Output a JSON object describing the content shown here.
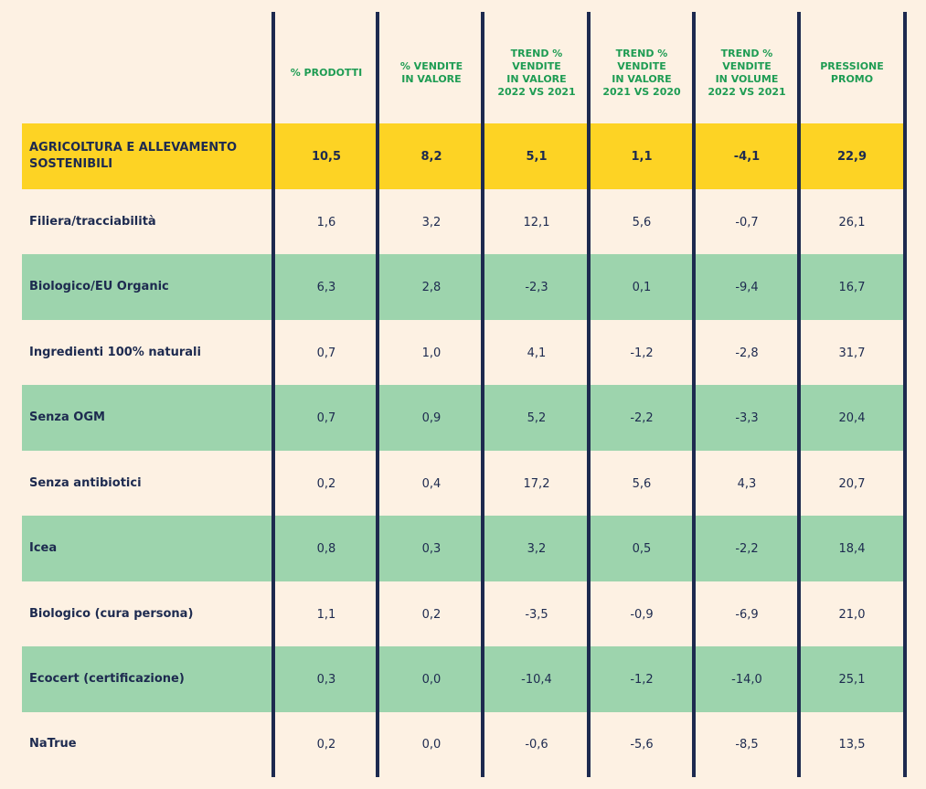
{
  "table": {
    "columns": [
      "% PRODOTTI",
      "% VENDITE\nIN VALORE",
      "TREND %\nVENDITE\nIN VALORE\n2022 VS 2021",
      "TREND %\nVENDITE\nIN VALORE\n2021 VS 2020",
      "TREND %\nVENDITE\nIN VOLUME\n2022 VS 2021",
      "PRESSIONE\nPROMO"
    ],
    "rows": [
      {
        "label": "AGRICOLTURA E ALLEVAMENTO SOSTENIBILI",
        "values": [
          "10,5",
          "8,2",
          "5,1",
          "1,1",
          "-4,1",
          "22,9"
        ]
      },
      {
        "label": "Filiera/tracciabilità",
        "values": [
          "1,6",
          "3,2",
          "12,1",
          "5,6",
          "-0,7",
          "26,1"
        ]
      },
      {
        "label": "Biologico/EU Organic",
        "values": [
          "6,3",
          "2,8",
          "-2,3",
          "0,1",
          "-9,4",
          "16,7"
        ]
      },
      {
        "label": "Ingredienti 100% naturali",
        "values": [
          "0,7",
          "1,0",
          "4,1",
          "-1,2",
          "-2,8",
          "31,7"
        ]
      },
      {
        "label": "Senza OGM",
        "values": [
          "0,7",
          "0,9",
          "5,2",
          "-2,2",
          "-3,3",
          "20,4"
        ]
      },
      {
        "label": "Senza antibiotici",
        "values": [
          "0,2",
          "0,4",
          "17,2",
          "5,6",
          "4,3",
          "20,7"
        ]
      },
      {
        "label": "Icea",
        "values": [
          "0,8",
          "0,3",
          "3,2",
          "0,5",
          "-2,2",
          "18,4"
        ]
      },
      {
        "label": "Biologico (cura persona)",
        "values": [
          "1,1",
          "0,2",
          "-3,5",
          "-0,9",
          "-6,9",
          "21,0"
        ]
      },
      {
        "label": "Ecocert (certificazione)",
        "values": [
          "0,3",
          "0,0",
          "-10,4",
          "-1,2",
          "-14,0",
          "25,1"
        ]
      },
      {
        "label": "NaTrue",
        "values": [
          "0,2",
          "0,0",
          "-0,6",
          "-5,6",
          "-8,5",
          "13,5"
        ]
      }
    ]
  },
  "colors": {
    "background": "#fdf1e3",
    "header_text": "#1e9c53",
    "highlight_row": "#fdd324",
    "band_row": "#9dd4ad",
    "text": "#1d2a4f",
    "grid_line": "#1d2a4f"
  }
}
